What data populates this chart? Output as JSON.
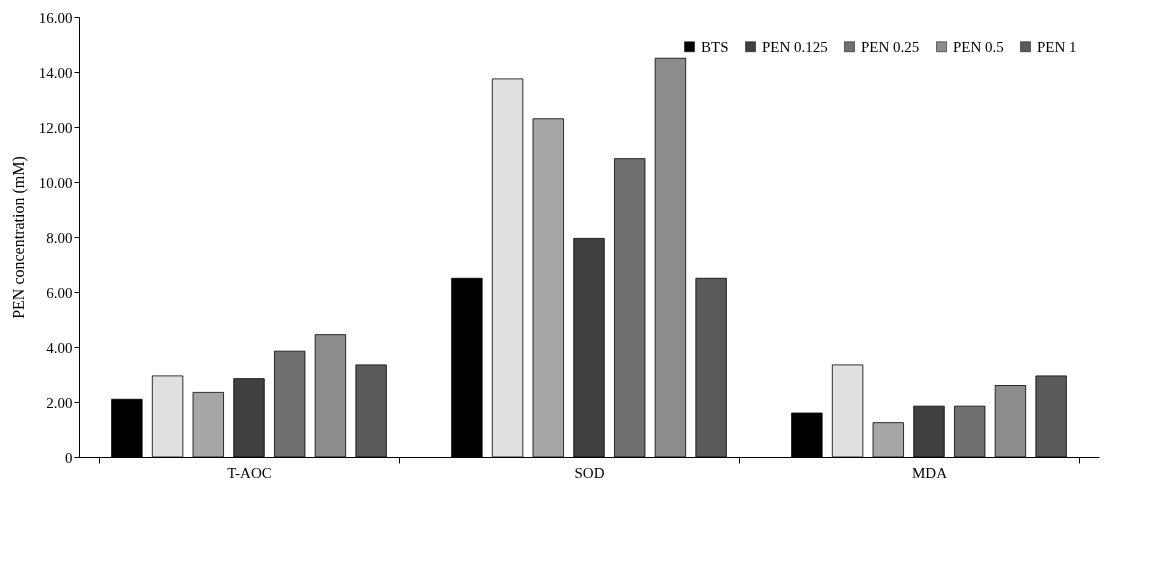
{
  "chart_data": {
    "type": "bar",
    "ylabel": "PEN concentration (mM)",
    "categories": [
      "T-AOC",
      "SOD",
      "MDA"
    ],
    "series": [
      {
        "name": "BTS",
        "color": "#000000",
        "values": [
          2.1,
          6.5,
          1.6
        ]
      },
      {
        "color": "#e0e0e0",
        "values": [
          2.95,
          13.75,
          3.35
        ]
      },
      {
        "color": "#a6a6a6",
        "values": [
          2.35,
          12.3,
          1.25
        ]
      },
      {
        "name": "PEN 0.125",
        "color": "#404040",
        "values": [
          2.85,
          7.95,
          1.85
        ]
      },
      {
        "name": "PEN 0.25",
        "color": "#707070",
        "values": [
          3.85,
          10.85,
          1.85
        ]
      },
      {
        "name": "PEN 0.5",
        "color": "#8c8c8c",
        "values": [
          4.45,
          14.5,
          2.6
        ]
      },
      {
        "name": "PEN 1",
        "color": "#5a5a5a",
        "values": [
          3.35,
          6.5,
          2.95
        ]
      }
    ],
    "ylim": [
      0,
      16
    ],
    "yticks": [
      0,
      {
        "value": 2,
        "label": "2.00"
      },
      {
        "value": 4,
        "label": "4.00"
      },
      {
        "value": 6,
        "label": "6.00"
      },
      {
        "value": 8,
        "label": "8.00"
      },
      {
        "value": 10,
        "label": "10.00"
      },
      {
        "value": 12,
        "label": "12.00"
      },
      {
        "value": 14,
        "label": "14.00"
      },
      {
        "value": 16,
        "label": "16.00"
      }
    ],
    "grid": false,
    "legend": "top right"
  }
}
